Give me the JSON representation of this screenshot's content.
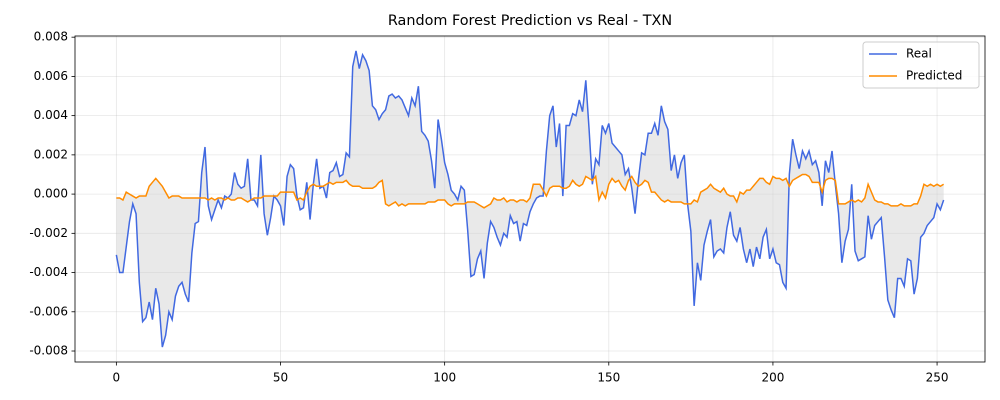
{
  "chart_data": {
    "type": "line",
    "title": "Random Forest Prediction vs Real - TXN",
    "x": [
      0,
      1,
      2,
      3,
      4,
      5,
      6,
      7,
      8,
      9,
      10,
      11,
      12,
      13,
      14,
      15,
      16,
      17,
      18,
      19,
      20,
      21,
      22,
      23,
      24,
      25,
      26,
      27,
      28,
      29,
      30,
      31,
      32,
      33,
      34,
      35,
      36,
      37,
      38,
      39,
      40,
      41,
      42,
      43,
      44,
      45,
      46,
      47,
      48,
      49,
      50,
      51,
      52,
      53,
      54,
      55,
      56,
      57,
      58,
      59,
      60,
      61,
      62,
      63,
      64,
      65,
      66,
      67,
      68,
      69,
      70,
      71,
      72,
      73,
      74,
      75,
      76,
      77,
      78,
      79,
      80,
      81,
      82,
      83,
      84,
      85,
      86,
      87,
      88,
      89,
      90,
      91,
      92,
      93,
      94,
      95,
      96,
      97,
      98,
      99,
      100,
      101,
      102,
      103,
      104,
      105,
      106,
      107,
      108,
      109,
      110,
      111,
      112,
      113,
      114,
      115,
      116,
      117,
      118,
      119,
      120,
      121,
      122,
      123,
      124,
      125,
      126,
      127,
      128,
      129,
      130,
      131,
      132,
      133,
      134,
      135,
      136,
      137,
      138,
      139,
      140,
      141,
      142,
      143,
      144,
      145,
      146,
      147,
      148,
      149,
      150,
      151,
      152,
      153,
      154,
      155,
      156,
      157,
      158,
      159,
      160,
      161,
      162,
      163,
      164,
      165,
      166,
      167,
      168,
      169,
      170,
      171,
      172,
      173,
      174,
      175,
      176,
      177,
      178,
      179,
      180,
      181,
      182,
      183,
      184,
      185,
      186,
      187,
      188,
      189,
      190,
      191,
      192,
      193,
      194,
      195,
      196,
      197,
      198,
      199,
      200,
      201,
      202,
      203,
      204,
      205,
      206,
      207,
      208,
      209,
      210,
      211,
      212,
      213,
      214,
      215,
      216,
      217,
      218,
      219,
      220,
      221,
      222,
      223,
      224,
      225,
      226,
      227,
      228,
      229,
      230,
      231,
      232,
      233,
      234,
      235,
      236,
      237,
      238,
      239,
      240,
      241,
      242,
      243,
      244,
      245,
      246,
      247,
      248,
      249,
      250,
      251,
      252
    ],
    "series": [
      {
        "name": "Real",
        "color": "#4169e1",
        "values": [
          -0.0031,
          -0.004,
          -0.004,
          -0.0027,
          -0.0014,
          -0.0005,
          -0.001,
          -0.0045,
          -0.0065,
          -0.0063,
          -0.0055,
          -0.0064,
          -0.0048,
          -0.0056,
          -0.0078,
          -0.0072,
          -0.006,
          -0.0064,
          -0.0052,
          -0.0047,
          -0.0045,
          -0.0051,
          -0.0055,
          -0.003,
          -0.0015,
          -0.0014,
          0.0011,
          0.0024,
          -0.0006,
          -0.0013,
          -0.0008,
          -0.0003,
          -0.0007,
          -0.0001,
          -0.0002,
          0.0,
          0.0011,
          0.0005,
          0.0003,
          0.0004,
          0.0018,
          -0.0003,
          -0.0003,
          -0.0006,
          0.002,
          -0.001,
          -0.0021,
          -0.0012,
          -0.0001,
          -0.0003,
          -0.0006,
          -0.0016,
          0.0009,
          0.0015,
          0.0013,
          -0.0001,
          -0.0008,
          -0.0007,
          0.0006,
          -0.0013,
          0.0005,
          0.0018,
          0.0003,
          0.0004,
          -0.0002,
          0.0011,
          0.0012,
          0.0016,
          0.0009,
          0.001,
          0.0021,
          0.0019,
          0.0065,
          0.0073,
          0.0064,
          0.0071,
          0.0068,
          0.0063,
          0.0045,
          0.0043,
          0.0038,
          0.0041,
          0.0043,
          0.005,
          0.0051,
          0.0049,
          0.005,
          0.0048,
          0.0044,
          0.004,
          0.0049,
          0.0045,
          0.0055,
          0.0032,
          0.003,
          0.0027,
          0.0017,
          0.0003,
          0.0038,
          0.0028,
          0.0016,
          0.001,
          0.0002,
          0.0,
          -0.0003,
          0.0004,
          0.0002,
          -0.0018,
          -0.0042,
          -0.0041,
          -0.0033,
          -0.0029,
          -0.0043,
          -0.0025,
          -0.0014,
          -0.0017,
          -0.0022,
          -0.0026,
          -0.002,
          -0.0022,
          -0.0011,
          -0.0015,
          -0.0014,
          -0.0024,
          -0.0015,
          -0.0016,
          -0.0009,
          -0.0005,
          -0.0002,
          -0.0001,
          -0.0001,
          0.0022,
          0.004,
          0.0045,
          0.0024,
          0.0036,
          -0.0001,
          0.0035,
          0.0035,
          0.0041,
          0.004,
          0.0048,
          0.0042,
          0.0058,
          0.0033,
          0.0005,
          0.0018,
          0.0015,
          0.0035,
          0.0031,
          0.0036,
          0.0026,
          0.0024,
          0.0022,
          0.002,
          0.001,
          0.0013,
          0.0003,
          -0.001,
          0.0007,
          0.0021,
          0.002,
          0.0031,
          0.0031,
          0.0036,
          0.003,
          0.0045,
          0.0037,
          0.0033,
          0.0012,
          0.002,
          0.0008,
          0.0016,
          0.002,
          -0.0005,
          -0.0019,
          -0.0057,
          -0.0035,
          -0.0044,
          -0.0026,
          -0.0019,
          -0.0013,
          -0.0032,
          -0.0029,
          -0.0028,
          -0.003,
          -0.0017,
          -0.0009,
          -0.0021,
          -0.0024,
          -0.0017,
          -0.0028,
          -0.0035,
          -0.0028,
          -0.0037,
          -0.0027,
          -0.0033,
          -0.0022,
          -0.0018,
          -0.0033,
          -0.0028,
          -0.0035,
          -0.0036,
          -0.0045,
          -0.0048,
          0.001,
          0.0028,
          0.002,
          0.0013,
          0.0022,
          0.0018,
          0.0022,
          0.0015,
          0.0017,
          0.0011,
          -0.0006,
          0.0017,
          0.0011,
          0.0022,
          0.0005,
          -0.001,
          -0.0035,
          -0.0024,
          -0.0018,
          0.0005,
          -0.0029,
          -0.0034,
          -0.0033,
          -0.0032,
          -0.0011,
          -0.0023,
          -0.0016,
          -0.0014,
          -0.0012,
          -0.0032,
          -0.0054,
          -0.0059,
          -0.0063,
          -0.0043,
          -0.0043,
          -0.0047,
          -0.0033,
          -0.0034,
          -0.0051,
          -0.0043,
          -0.0022,
          -0.002,
          -0.0016,
          -0.0014,
          -0.0012,
          -0.0005,
          -0.0008,
          -0.0003
        ]
      },
      {
        "name": "Predicted",
        "color": "#ff8c00",
        "values": [
          -0.0002,
          -0.0002,
          -0.0003,
          0.0001,
          0.0,
          -0.0001,
          -0.0002,
          -0.0001,
          -0.0001,
          -0.0001,
          0.0004,
          0.0006,
          0.0008,
          0.0006,
          0.0004,
          0.0001,
          -0.0002,
          -0.0001,
          -0.0001,
          -0.0001,
          -0.0002,
          -0.0002,
          -0.0002,
          -0.0002,
          -0.0002,
          -0.0002,
          -0.0002,
          -0.0002,
          -0.0003,
          -0.0002,
          -0.0003,
          -0.0002,
          -0.0002,
          -0.0003,
          -0.0002,
          -0.0003,
          -0.0003,
          -0.0002,
          -0.0002,
          -0.0003,
          -0.0004,
          -0.0003,
          -0.0002,
          -0.0002,
          -0.0002,
          -0.0001,
          -0.0001,
          -0.0001,
          -0.0001,
          -0.0001,
          0.0001,
          0.0001,
          0.0001,
          0.0001,
          0.0001,
          -0.0003,
          -0.0002,
          -0.0003,
          0.0001,
          0.0004,
          0.0005,
          0.0004,
          0.0004,
          0.0004,
          0.0005,
          0.0006,
          0.0005,
          0.0006,
          0.0006,
          0.0006,
          0.0007,
          0.0005,
          0.0004,
          0.0004,
          0.0004,
          0.0003,
          0.0003,
          0.0003,
          0.0003,
          0.0004,
          0.0006,
          0.0007,
          -0.0005,
          -0.0006,
          -0.0005,
          -0.0004,
          -0.0006,
          -0.0005,
          -0.0006,
          -0.0005,
          -0.0005,
          -0.0005,
          -0.0005,
          -0.0005,
          -0.0005,
          -0.0004,
          -0.0004,
          -0.0004,
          -0.0003,
          -0.0003,
          -0.0003,
          -0.0005,
          -0.0006,
          -0.0005,
          -0.0005,
          -0.0005,
          -0.0005,
          -0.0004,
          -0.0004,
          -0.0004,
          -0.0005,
          -0.0006,
          -0.0007,
          -0.0006,
          -0.0005,
          -0.0002,
          -0.0003,
          -0.0003,
          -0.0002,
          -0.0004,
          -0.0003,
          -0.0003,
          -0.0004,
          -0.0003,
          -0.0003,
          -0.0004,
          -0.0002,
          0.0005,
          0.0005,
          0.0005,
          0.0002,
          -0.0001,
          0.0003,
          0.0004,
          0.0004,
          0.0004,
          0.0003,
          0.0003,
          0.0004,
          0.0007,
          0.0005,
          0.0004,
          0.0005,
          0.0009,
          0.0008,
          0.0007,
          0.0009,
          -0.0003,
          0.0001,
          -0.0002,
          0.0005,
          0.0008,
          0.0006,
          0.0007,
          0.0004,
          0.0002,
          0.0007,
          0.0009,
          0.0006,
          0.0004,
          0.0005,
          0.0007,
          0.0006,
          0.0001,
          0.0001,
          -0.0001,
          -0.0003,
          -0.0004,
          -0.0003,
          -0.0004,
          -0.0004,
          -0.0004,
          -0.0004,
          -0.0005,
          -0.0005,
          -0.0005,
          -0.0003,
          -0.0004,
          0.0001,
          0.0002,
          0.0003,
          0.0005,
          0.0003,
          0.0002,
          0.0001,
          0.0003,
          0.0,
          -0.0001,
          -0.0001,
          -0.0004,
          0.0001,
          0.0,
          0.0002,
          0.0002,
          0.0004,
          0.0006,
          0.0008,
          0.0008,
          0.0006,
          0.0005,
          0.0009,
          0.0008,
          0.0008,
          0.0007,
          0.0008,
          0.0004,
          0.0007,
          0.0008,
          0.0009,
          0.001,
          0.001,
          0.0009,
          0.0006,
          0.0006,
          0.0006,
          0.0001,
          0.0007,
          0.0008,
          0.0008,
          0.0007,
          -0.0005,
          -0.0005,
          -0.0005,
          -0.0004,
          -0.0003,
          -0.0004,
          -0.0003,
          -0.0004,
          -0.0002,
          0.0005,
          0.0001,
          -0.0003,
          -0.0004,
          -0.0004,
          -0.0005,
          -0.0005,
          -0.0006,
          -0.0006,
          -0.0006,
          -0.0005,
          -0.0006,
          -0.0006,
          -0.0006,
          -0.0005,
          -0.0005,
          -0.0001,
          0.0005,
          0.0004,
          0.0005,
          0.0004,
          0.0005,
          0.0004,
          0.0005
        ]
      }
    ],
    "fill_color": "#d3d3d3",
    "xlim": [
      -12.6,
      264.6
    ],
    "xticks": [
      0,
      50,
      100,
      150,
      200,
      250
    ],
    "ylim": [
      -0.00856,
      0.00806
    ],
    "yticks": [
      -0.008,
      -0.006,
      -0.004,
      -0.002,
      {
        "value": 0,
        "label": "0.000"
      },
      0.002,
      0.004,
      0.006,
      0.008
    ],
    "grid": true,
    "legend": "upper right"
  }
}
